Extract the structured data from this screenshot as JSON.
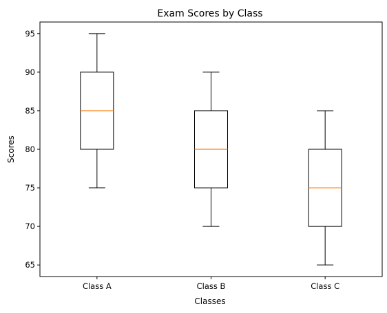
{
  "chart_data": {
    "type": "boxplot",
    "title": "Exam Scores by Class",
    "xlabel": "Classes",
    "ylabel": "Scores",
    "ylim": [
      63.5,
      96.5
    ],
    "yticks": [
      65,
      70,
      75,
      80,
      85,
      90,
      95
    ],
    "grid": false,
    "categories": [
      "Class A",
      "Class B",
      "Class C"
    ],
    "boxes": [
      {
        "category": "Class A",
        "min": 75,
        "q1": 80,
        "median": 85,
        "q3": 90,
        "max": 95
      },
      {
        "category": "Class B",
        "min": 70,
        "q1": 75,
        "median": 80,
        "q3": 85,
        "max": 90
      },
      {
        "category": "Class C",
        "min": 65,
        "q1": 70,
        "median": 75,
        "q3": 80,
        "max": 85
      }
    ],
    "colors": {
      "box": "#000000",
      "median": "#ff7f0e"
    }
  }
}
